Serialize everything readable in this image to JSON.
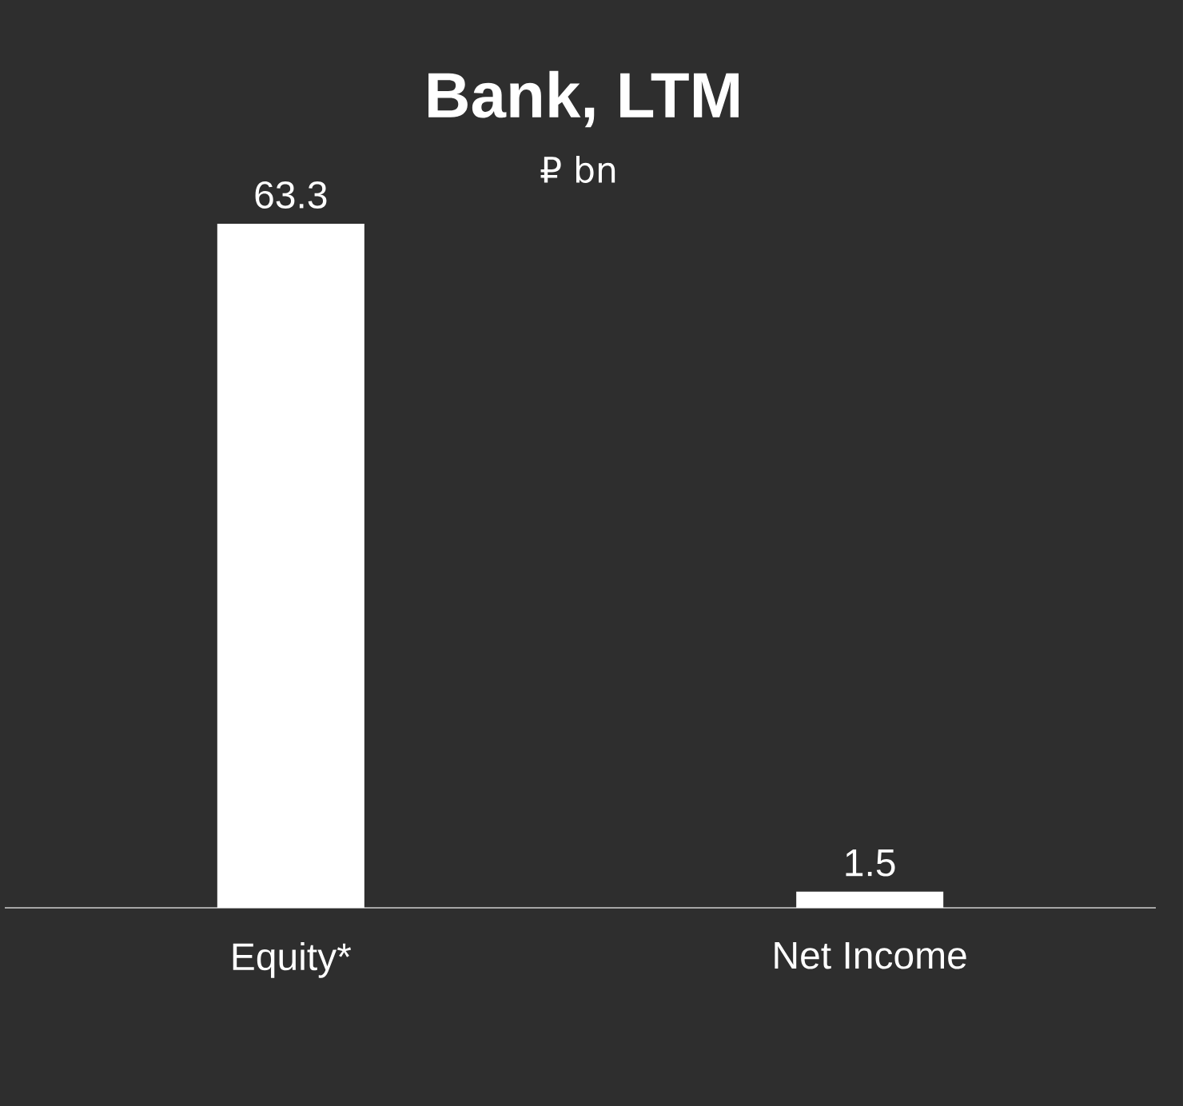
{
  "chart_data": {
    "type": "bar",
    "title": "Bank, LTM",
    "subtitle": "₽ bn",
    "categories": [
      "Equity*",
      "Net Income"
    ],
    "values": [
      63.3,
      1.5
    ],
    "color": "#ffffff",
    "data_labels": true
  }
}
